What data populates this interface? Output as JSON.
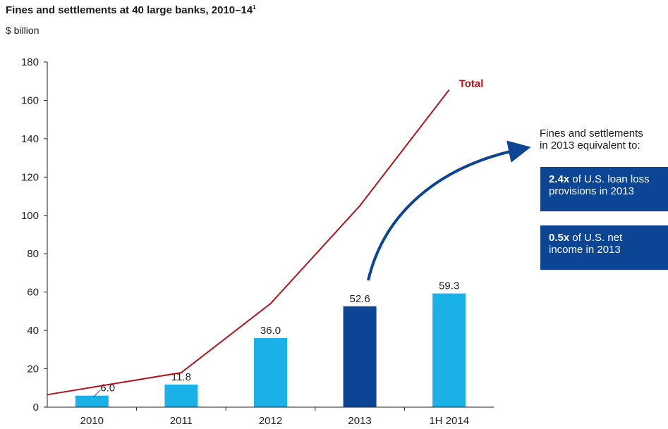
{
  "title": {
    "main": "Fines and settlements at 40 large banks, 2010–14",
    "footnote_marker": "1",
    "unit": "$ billion"
  },
  "chart_data": {
    "type": "bar",
    "categories": [
      "2010",
      "2011",
      "2012",
      "2013",
      "1H 2014"
    ],
    "values": [
      6.0,
      11.8,
      36.0,
      52.6,
      59.3
    ],
    "value_labels": [
      "6.0",
      "11.8",
      "36.0",
      "52.6",
      "59.3"
    ],
    "highlighted_category": "2013",
    "ylim": [
      0,
      180
    ],
    "yticks": [
      0,
      20,
      40,
      60,
      80,
      100,
      120,
      140,
      160,
      180
    ],
    "grid": false,
    "line_series": {
      "name": "Total",
      "points": [
        {
          "x": "2009.5",
          "y": 6.5
        },
        {
          "x": "2011",
          "y": 18
        },
        {
          "x": "2012",
          "y": 54
        },
        {
          "x": "2013",
          "y": 105
        },
        {
          "x": "1H 2014",
          "y": 165.5
        }
      ]
    },
    "colors": {
      "bar": "#1ab0e8",
      "bar_highlight": "#0b4594",
      "line": "#b5121b",
      "axis": "#222222",
      "arrow": "#0b4594"
    }
  },
  "callout": {
    "lead_line1": "Fines and settlements",
    "lead_line2": "in 2013 equivalent to:",
    "box1_bold": "2.4x",
    "box1_text1": " of U.S. loan loss",
    "box1_text2": "provisions in 2013",
    "box2_bold": "0.5x",
    "box2_text1": " of U.S. net",
    "box2_text2": "income in 2013"
  }
}
